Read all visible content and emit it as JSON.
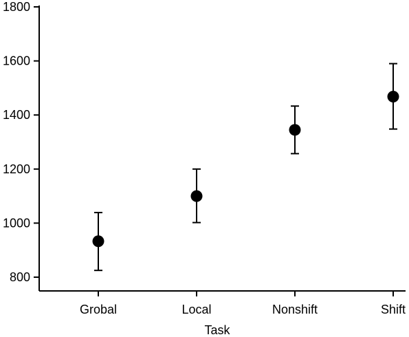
{
  "chart_data": {
    "type": "scatter",
    "title": "",
    "xlabel": "Task",
    "ylabel": "",
    "categories": [
      "Grobal",
      "Local",
      "Nonshift",
      "Shift"
    ],
    "series": [
      {
        "values": [
          933,
          1100,
          1345,
          1468
        ],
        "error_low": [
          825,
          1002,
          1257,
          1348
        ],
        "error_high": [
          1039,
          1200,
          1433,
          1590
        ]
      }
    ],
    "ylim": [
      800,
      1800
    ],
    "yticks": [
      800,
      1000,
      1200,
      1400,
      1600,
      1800
    ],
    "grid": false,
    "legend": "none",
    "colors": {
      "marker": "#000000",
      "axis": "#000000",
      "background": "#ffffff"
    }
  }
}
